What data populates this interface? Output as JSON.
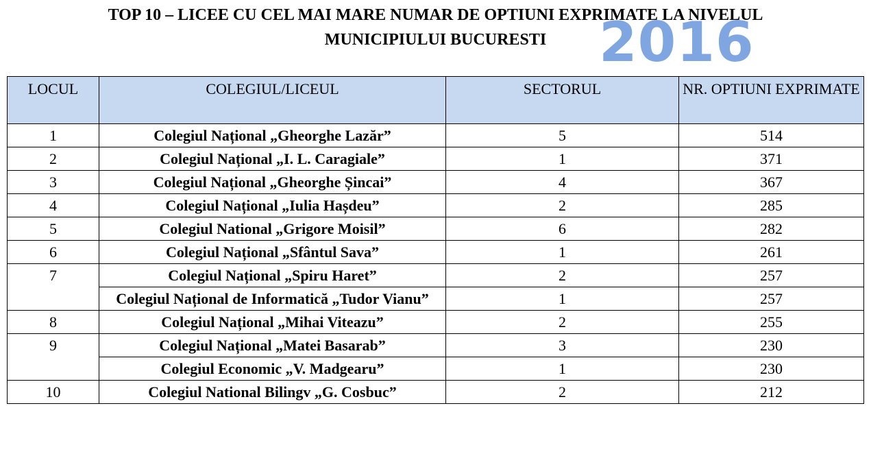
{
  "title": {
    "line1": "TOP 10 – LICEE CU CEL MAI MARE NUMAR DE OPTIUNI EXPRIMATE LA NIVELUL",
    "line2": "MUNICIPIULUI BUCURESTI",
    "year": "2016"
  },
  "table": {
    "headers": {
      "rank": "LOCUL",
      "school": "COLEGIUL/LICEUL",
      "sector": "SECTORUL",
      "options": "NR. OPTIUNI EXPRIMATE"
    },
    "rows": [
      {
        "rank": "1",
        "school": "Colegiul Național „Gheorghe Lazăr”",
        "sector": "5",
        "options": "514"
      },
      {
        "rank": "2",
        "school": "Colegiul Național „I. L. Caragiale”",
        "sector": "1",
        "options": "371"
      },
      {
        "rank": "3",
        "school": "Colegiul Național „Gheorghe Șincai”",
        "sector": "4",
        "options": "367"
      },
      {
        "rank": "4",
        "school": "Colegiul Național „Iulia Hașdeu”",
        "sector": "2",
        "options": "285"
      },
      {
        "rank": "5",
        "school": "Colegiul National „Grigore Moisil”",
        "sector": "6",
        "options": "282"
      },
      {
        "rank": "6",
        "school": "Colegiul Național „Sfântul Sava”",
        "sector": "1",
        "options": "261"
      },
      {
        "rank": "7",
        "school": "Colegiul Național „Spiru Haret”",
        "sector": "2",
        "options": "257"
      },
      {
        "rank": "",
        "school": "Colegiul Național de Informatică „Tudor Vianu”",
        "sector": "1",
        "options": "257"
      },
      {
        "rank": "8",
        "school": "Colegiul Național „Mihai Viteazu”",
        "sector": "2",
        "options": "255"
      },
      {
        "rank": "9",
        "school": "Colegiul Național „Matei Basarab”",
        "sector": "3",
        "options": "230"
      },
      {
        "rank": "",
        "school": "Colegiul Economic „V. Madgearu”",
        "sector": "1",
        "options": "230"
      },
      {
        "rank": "10",
        "school": "Colegiul National Bilingv „G. Cosbuc”",
        "sector": "2",
        "options": "212"
      }
    ]
  }
}
